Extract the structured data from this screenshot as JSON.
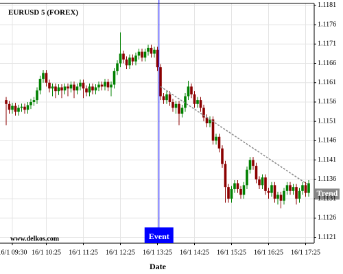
{
  "chart_data": {
    "type": "candlestick",
    "title": "EURUSD 5 (FOREX)",
    "watermark": "www.delkos.com",
    "x_label": "Date",
    "categories": [
      null,
      null,
      "16/1 09:30",
      null,
      null,
      null,
      null,
      null,
      null,
      null,
      null,
      null,
      null,
      "16/1 10:25",
      null,
      null,
      null,
      null,
      null,
      null,
      null,
      null,
      null,
      null,
      null,
      "16/1 11:25",
      null,
      null,
      null,
      null,
      null,
      null,
      null,
      null,
      null,
      null,
      null,
      "16/1 12:25",
      null,
      null,
      null,
      null,
      null,
      null,
      null,
      null,
      null,
      null,
      null,
      "16/1 13:25",
      null,
      null,
      null,
      null,
      null,
      null,
      null,
      null,
      null,
      null,
      null,
      "16/1 14:25",
      null,
      null,
      null,
      null,
      null,
      null,
      null,
      null,
      null,
      null,
      null,
      "16/1 15:25",
      null,
      null,
      null,
      null,
      null,
      null,
      null,
      null,
      null,
      null,
      null,
      "16/1 16:25",
      null,
      null,
      null,
      null,
      null,
      null,
      null,
      null,
      null,
      null,
      null,
      "16/1 17:25",
      null
    ],
    "series": [
      {
        "up_color": "#008000",
        "down_color": "#8b0000",
        "open": [
          1.11565,
          1.11555,
          1.1154,
          1.1155,
          1.11535,
          1.11545,
          1.11548,
          1.1154,
          1.11552,
          1.1156,
          1.11565,
          1.1159,
          1.1162,
          1.11635,
          1.1161,
          1.11595,
          1.116,
          1.11588,
          1.11598,
          1.1159,
          1.116,
          1.11595,
          1.11605,
          1.1159,
          1.116,
          1.1161,
          1.11595,
          1.11585,
          1.116,
          1.1159,
          1.11598,
          1.11605,
          1.116,
          1.11612,
          1.11598,
          1.11605,
          1.1164,
          1.1166,
          1.11685,
          1.1167,
          1.11655,
          1.11675,
          1.11665,
          1.1168,
          1.1169,
          1.11675,
          1.1169,
          1.117,
          1.11685,
          1.11695,
          1.1165,
          1.11575,
          1.11565,
          1.1158,
          1.1156,
          1.11545,
          1.11555,
          1.1153,
          1.11545,
          1.11575,
          1.116,
          1.1158,
          1.11555,
          1.11565,
          1.11545,
          1.1152,
          1.11505,
          1.11515,
          1.1146,
          1.1147,
          1.1144,
          1.114,
          1.1134,
          1.1131,
          1.11335,
          1.1135,
          1.11335,
          1.1132,
          1.11345,
          1.11385,
          1.1141,
          1.11395,
          1.1136,
          1.11345,
          1.11365,
          1.1133,
          1.11325,
          1.11345,
          1.1131,
          1.1132,
          1.11305,
          1.1133,
          1.11345,
          1.1133,
          1.1134,
          1.1131,
          1.1133,
          1.11345,
          1.11325
        ],
        "high": [
          1.11573,
          1.11563,
          1.11558,
          1.11558,
          1.11553,
          1.11556,
          1.11556,
          1.1156,
          1.11568,
          1.11573,
          1.11598,
          1.11628,
          1.11643,
          1.11643,
          1.11618,
          1.11608,
          1.11608,
          1.11606,
          1.11606,
          1.11608,
          1.11608,
          1.11613,
          1.11613,
          1.11608,
          1.11618,
          1.11618,
          1.11603,
          1.11608,
          1.11608,
          1.11606,
          1.11613,
          1.11613,
          1.1162,
          1.1162,
          1.11613,
          1.11648,
          1.11668,
          1.1174,
          1.11693,
          1.11678,
          1.11683,
          1.11683,
          1.11688,
          1.11698,
          1.11698,
          1.11698,
          1.11708,
          1.11708,
          1.11703,
          1.11703,
          1.11658,
          1.11583,
          1.11588,
          1.11588,
          1.11568,
          1.11563,
          1.11563,
          1.11553,
          1.11583,
          1.11615,
          1.11608,
          1.11588,
          1.11573,
          1.11573,
          1.11553,
          1.11528,
          1.11523,
          1.11523,
          1.11478,
          1.11478,
          1.11448,
          1.11408,
          1.11348,
          1.11343,
          1.11358,
          1.11358,
          1.11343,
          1.11353,
          1.11393,
          1.11418,
          1.11418,
          1.11403,
          1.11368,
          1.11373,
          1.11373,
          1.11338,
          1.11353,
          1.11353,
          1.11328,
          1.11328,
          1.11338,
          1.11353,
          1.11353,
          1.11348,
          1.11348,
          1.11338,
          1.11353,
          1.11353,
          1.11358
        ],
        "low": [
          1.115,
          1.1153,
          1.1153,
          1.11525,
          1.11525,
          1.11535,
          1.1153,
          1.1153,
          1.11542,
          1.1155,
          1.11555,
          1.1158,
          1.1161,
          1.116,
          1.11585,
          1.11575,
          1.1157,
          1.11578,
          1.1157,
          1.1158,
          1.11575,
          1.11585,
          1.1157,
          1.1158,
          1.1159,
          1.1157,
          1.11575,
          1.11575,
          1.1158,
          1.1158,
          1.11588,
          1.1159,
          1.1159,
          1.11588,
          1.11575,
          1.11595,
          1.1163,
          1.1165,
          1.1166,
          1.11645,
          1.11645,
          1.11655,
          1.11655,
          1.1167,
          1.11665,
          1.11665,
          1.1168,
          1.11675,
          1.11675,
          1.1164,
          1.11565,
          1.11555,
          1.11555,
          1.1155,
          1.11535,
          1.1153,
          1.115,
          1.1152,
          1.11535,
          1.11565,
          1.1157,
          1.11545,
          1.11545,
          1.11535,
          1.1151,
          1.11495,
          1.11495,
          1.1145,
          1.1145,
          1.1143,
          1.1139,
          1.113,
          1.113,
          1.113,
          1.11325,
          1.11325,
          1.1131,
          1.1131,
          1.11335,
          1.11375,
          1.11385,
          1.1135,
          1.11335,
          1.11335,
          1.1132,
          1.1131,
          1.11315,
          1.113,
          1.11295,
          1.11285,
          1.11295,
          1.1132,
          1.1132,
          1.1132,
          1.11295,
          1.113,
          1.1132,
          1.11315,
          1.11315
        ],
        "close": [
          1.11555,
          1.1154,
          1.1155,
          1.11535,
          1.11545,
          1.11548,
          1.1154,
          1.11552,
          1.1156,
          1.11565,
          1.1159,
          1.1162,
          1.11635,
          1.1161,
          1.11595,
          1.116,
          1.11588,
          1.11598,
          1.1159,
          1.116,
          1.11595,
          1.11605,
          1.1159,
          1.116,
          1.1161,
          1.11595,
          1.11585,
          1.116,
          1.1159,
          1.11598,
          1.11605,
          1.116,
          1.11612,
          1.11598,
          1.11605,
          1.1164,
          1.1166,
          1.11685,
          1.1167,
          1.11655,
          1.11675,
          1.11665,
          1.1168,
          1.1169,
          1.11675,
          1.1169,
          1.117,
          1.11685,
          1.11695,
          1.1165,
          1.11575,
          1.11565,
          1.1158,
          1.1156,
          1.11545,
          1.11555,
          1.1153,
          1.11545,
          1.11575,
          1.116,
          1.1158,
          1.11555,
          1.11565,
          1.11545,
          1.1152,
          1.11505,
          1.11515,
          1.1146,
          1.1147,
          1.1144,
          1.114,
          1.1134,
          1.1131,
          1.11335,
          1.1135,
          1.11335,
          1.1132,
          1.11345,
          1.11385,
          1.1141,
          1.11395,
          1.1136,
          1.11345,
          1.11365,
          1.1133,
          1.11325,
          1.11345,
          1.1131,
          1.1132,
          1.11305,
          1.1133,
          1.11345,
          1.1133,
          1.1134,
          1.1131,
          1.1133,
          1.11345,
          1.11325,
          1.1135
        ]
      }
    ],
    "ylim": [
      1.11195,
      1.11815
    ],
    "yticks": [
      1.1181,
      1.1176,
      1.1171,
      1.1166,
      1.1161,
      1.1156,
      1.1151,
      1.1146,
      1.1141,
      1.1136,
      1.1131,
      1.1126,
      1.1121
    ],
    "grid": true,
    "event": {
      "label": "Event",
      "x": 49.5,
      "color": "#0000ff"
    },
    "trend": {
      "label": "Trend",
      "x": [
        50,
        98
      ],
      "values": [
        1.116,
        1.11345
      ],
      "color": "#888888"
    }
  }
}
